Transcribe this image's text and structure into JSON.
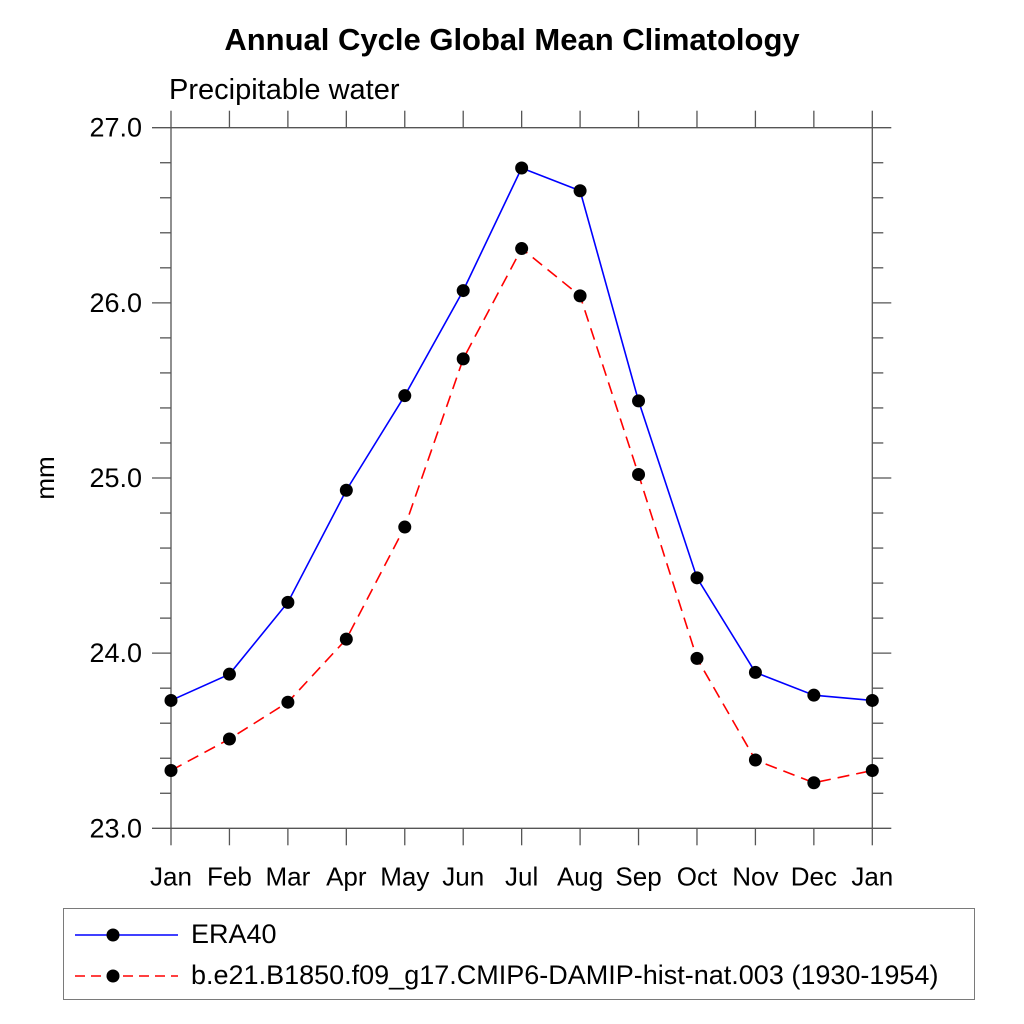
{
  "header": {
    "title": "Annual Cycle Global Mean Climatology",
    "subtitle": "Precipitable water"
  },
  "axes": {
    "ylabel": "mm",
    "ytick_labels": [
      "23.0",
      "24.0",
      "25.0",
      "26.0",
      "27.0"
    ]
  },
  "colors": {
    "era40_line": "#0000ff",
    "model_line": "#ff0000",
    "marker": "#000000",
    "axis": "#555555",
    "text": "#000000"
  },
  "chart_data": {
    "type": "line",
    "title": "Annual Cycle Global Mean Climatology",
    "subtitle": "Precipitable water",
    "xlabel": "",
    "ylabel": "mm",
    "categories": [
      "Jan",
      "Feb",
      "Mar",
      "Apr",
      "May",
      "Jun",
      "Jul",
      "Aug",
      "Sep",
      "Oct",
      "Nov",
      "Dec",
      "Jan"
    ],
    "ylim": [
      23.0,
      27.0
    ],
    "ytick_major_step": 1.0,
    "ytick_minor_step": 0.2,
    "grid": false,
    "legend_position": "bottom-left-box",
    "series": [
      {
        "id": "era40",
        "name": "ERA40",
        "color": "#0000ff",
        "line_style": "solid",
        "marker": "circle",
        "marker_color": "#000000",
        "values": [
          23.73,
          23.88,
          24.29,
          24.93,
          25.47,
          26.07,
          26.77,
          26.64,
          25.44,
          24.43,
          23.89,
          23.76,
          23.73
        ]
      },
      {
        "id": "hist-nat-003",
        "name": "b.e21.B1850.f09_g17.CMIP6-DAMIP-hist-nat.003 (1930-1954)",
        "color": "#ff0000",
        "line_style": "dashed",
        "marker": "circle",
        "marker_color": "#000000",
        "values": [
          23.33,
          23.51,
          23.72,
          24.08,
          24.72,
          25.68,
          26.31,
          26.04,
          25.02,
          23.97,
          23.39,
          23.26,
          23.33
        ]
      }
    ]
  }
}
